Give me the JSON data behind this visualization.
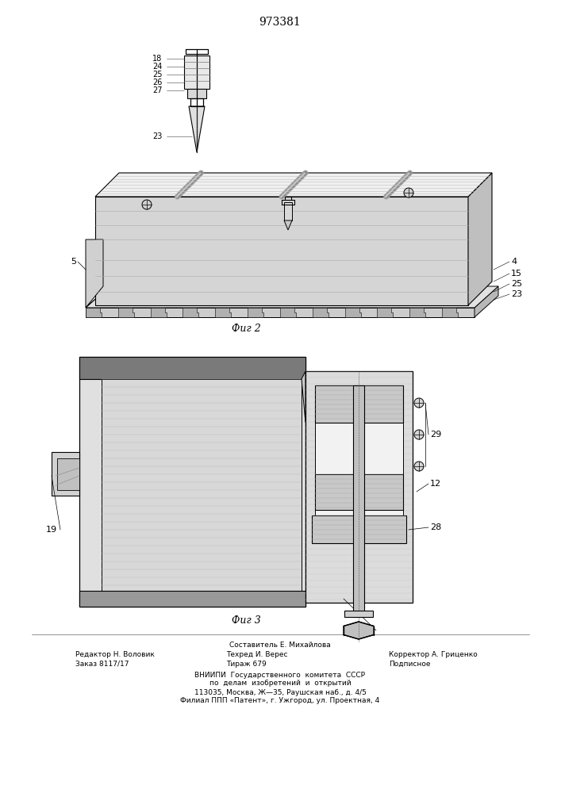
{
  "patent_number": "973381",
  "fig2_label": "Фиг 2",
  "fig3_label": "Фиг 3",
  "footer_line1_left": "Редактор Н. Воловик",
  "footer_line1_center": "Составитель Е. Михайлова",
  "footer_line1_right": "Корректор А. Гриценко",
  "footer_line2_left": "Заказ 8117/17",
  "footer_line2_center": "Техред И. Верес",
  "footer_line2_right": "Подписное",
  "footer_line3_left": "Тираж 679",
  "footer_org1": "ВНИИПИ  Государственного  комитета  СССР",
  "footer_org2": "по  делам  изобретений  и  открытий",
  "footer_org3": "113035, Москва, Ж—35, Раушская наб., д. 4/5",
  "footer_org4": "Филиал ППП «Патент», г. Ужгород, ул. Проектная, 4",
  "bg_color": "#ffffff",
  "line_color": "#000000"
}
